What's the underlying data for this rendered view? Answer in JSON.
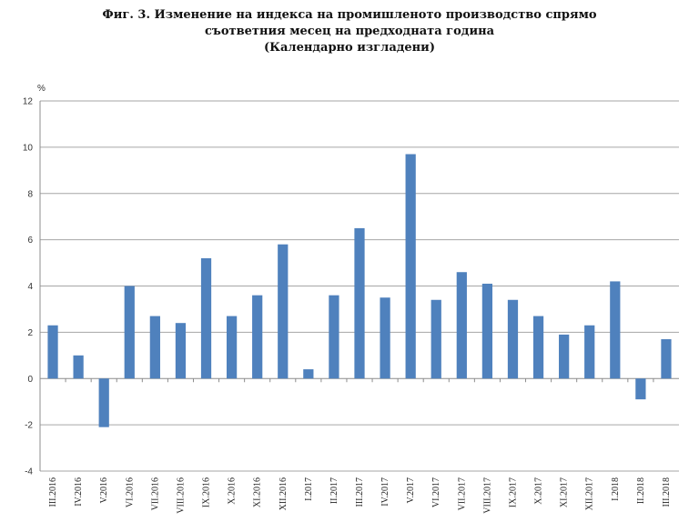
{
  "title_lines": [
    "Фиг. 3. Изменение на индекса на промишленото производство спрямо",
    "съответния месец на предходната година",
    "(Календарно изгладени)"
  ],
  "chart_data": {
    "type": "bar",
    "title": "Фиг. 3. Изменение на индекса на промишленото производство спрямо съответния месец на предходната година (Календарно изгладени)",
    "ylabel": "%",
    "xlabel": "",
    "ylim": [
      -4,
      12
    ],
    "yticks": [
      -4,
      -2,
      0,
      2,
      4,
      6,
      8,
      10,
      12
    ],
    "grid": true,
    "legend": "none",
    "bar_color": "#4f81bd",
    "categories": [
      "III.2016",
      "IV.2016",
      "V.2016",
      "VI.2016",
      "VII.2016",
      "VIII.2016",
      "IX.2016",
      "X.2016",
      "XI.2016",
      "XII.2016",
      "I.2017",
      "II.2017",
      "III.2017",
      "IV.2017",
      "V.2017",
      "VI.2017",
      "VII.2017",
      "VIII.2017",
      "IX.2017",
      "X.2017",
      "XI.2017",
      "XII.2017",
      "I.2018",
      "II.2018",
      "III.2018"
    ],
    "values": [
      2.3,
      1.0,
      -2.1,
      4.0,
      2.7,
      2.4,
      5.2,
      2.7,
      3.6,
      5.8,
      0.4,
      3.6,
      6.5,
      3.5,
      9.7,
      3.4,
      4.6,
      4.1,
      3.4,
      2.7,
      1.9,
      2.3,
      4.2,
      -0.9,
      1.7
    ]
  }
}
